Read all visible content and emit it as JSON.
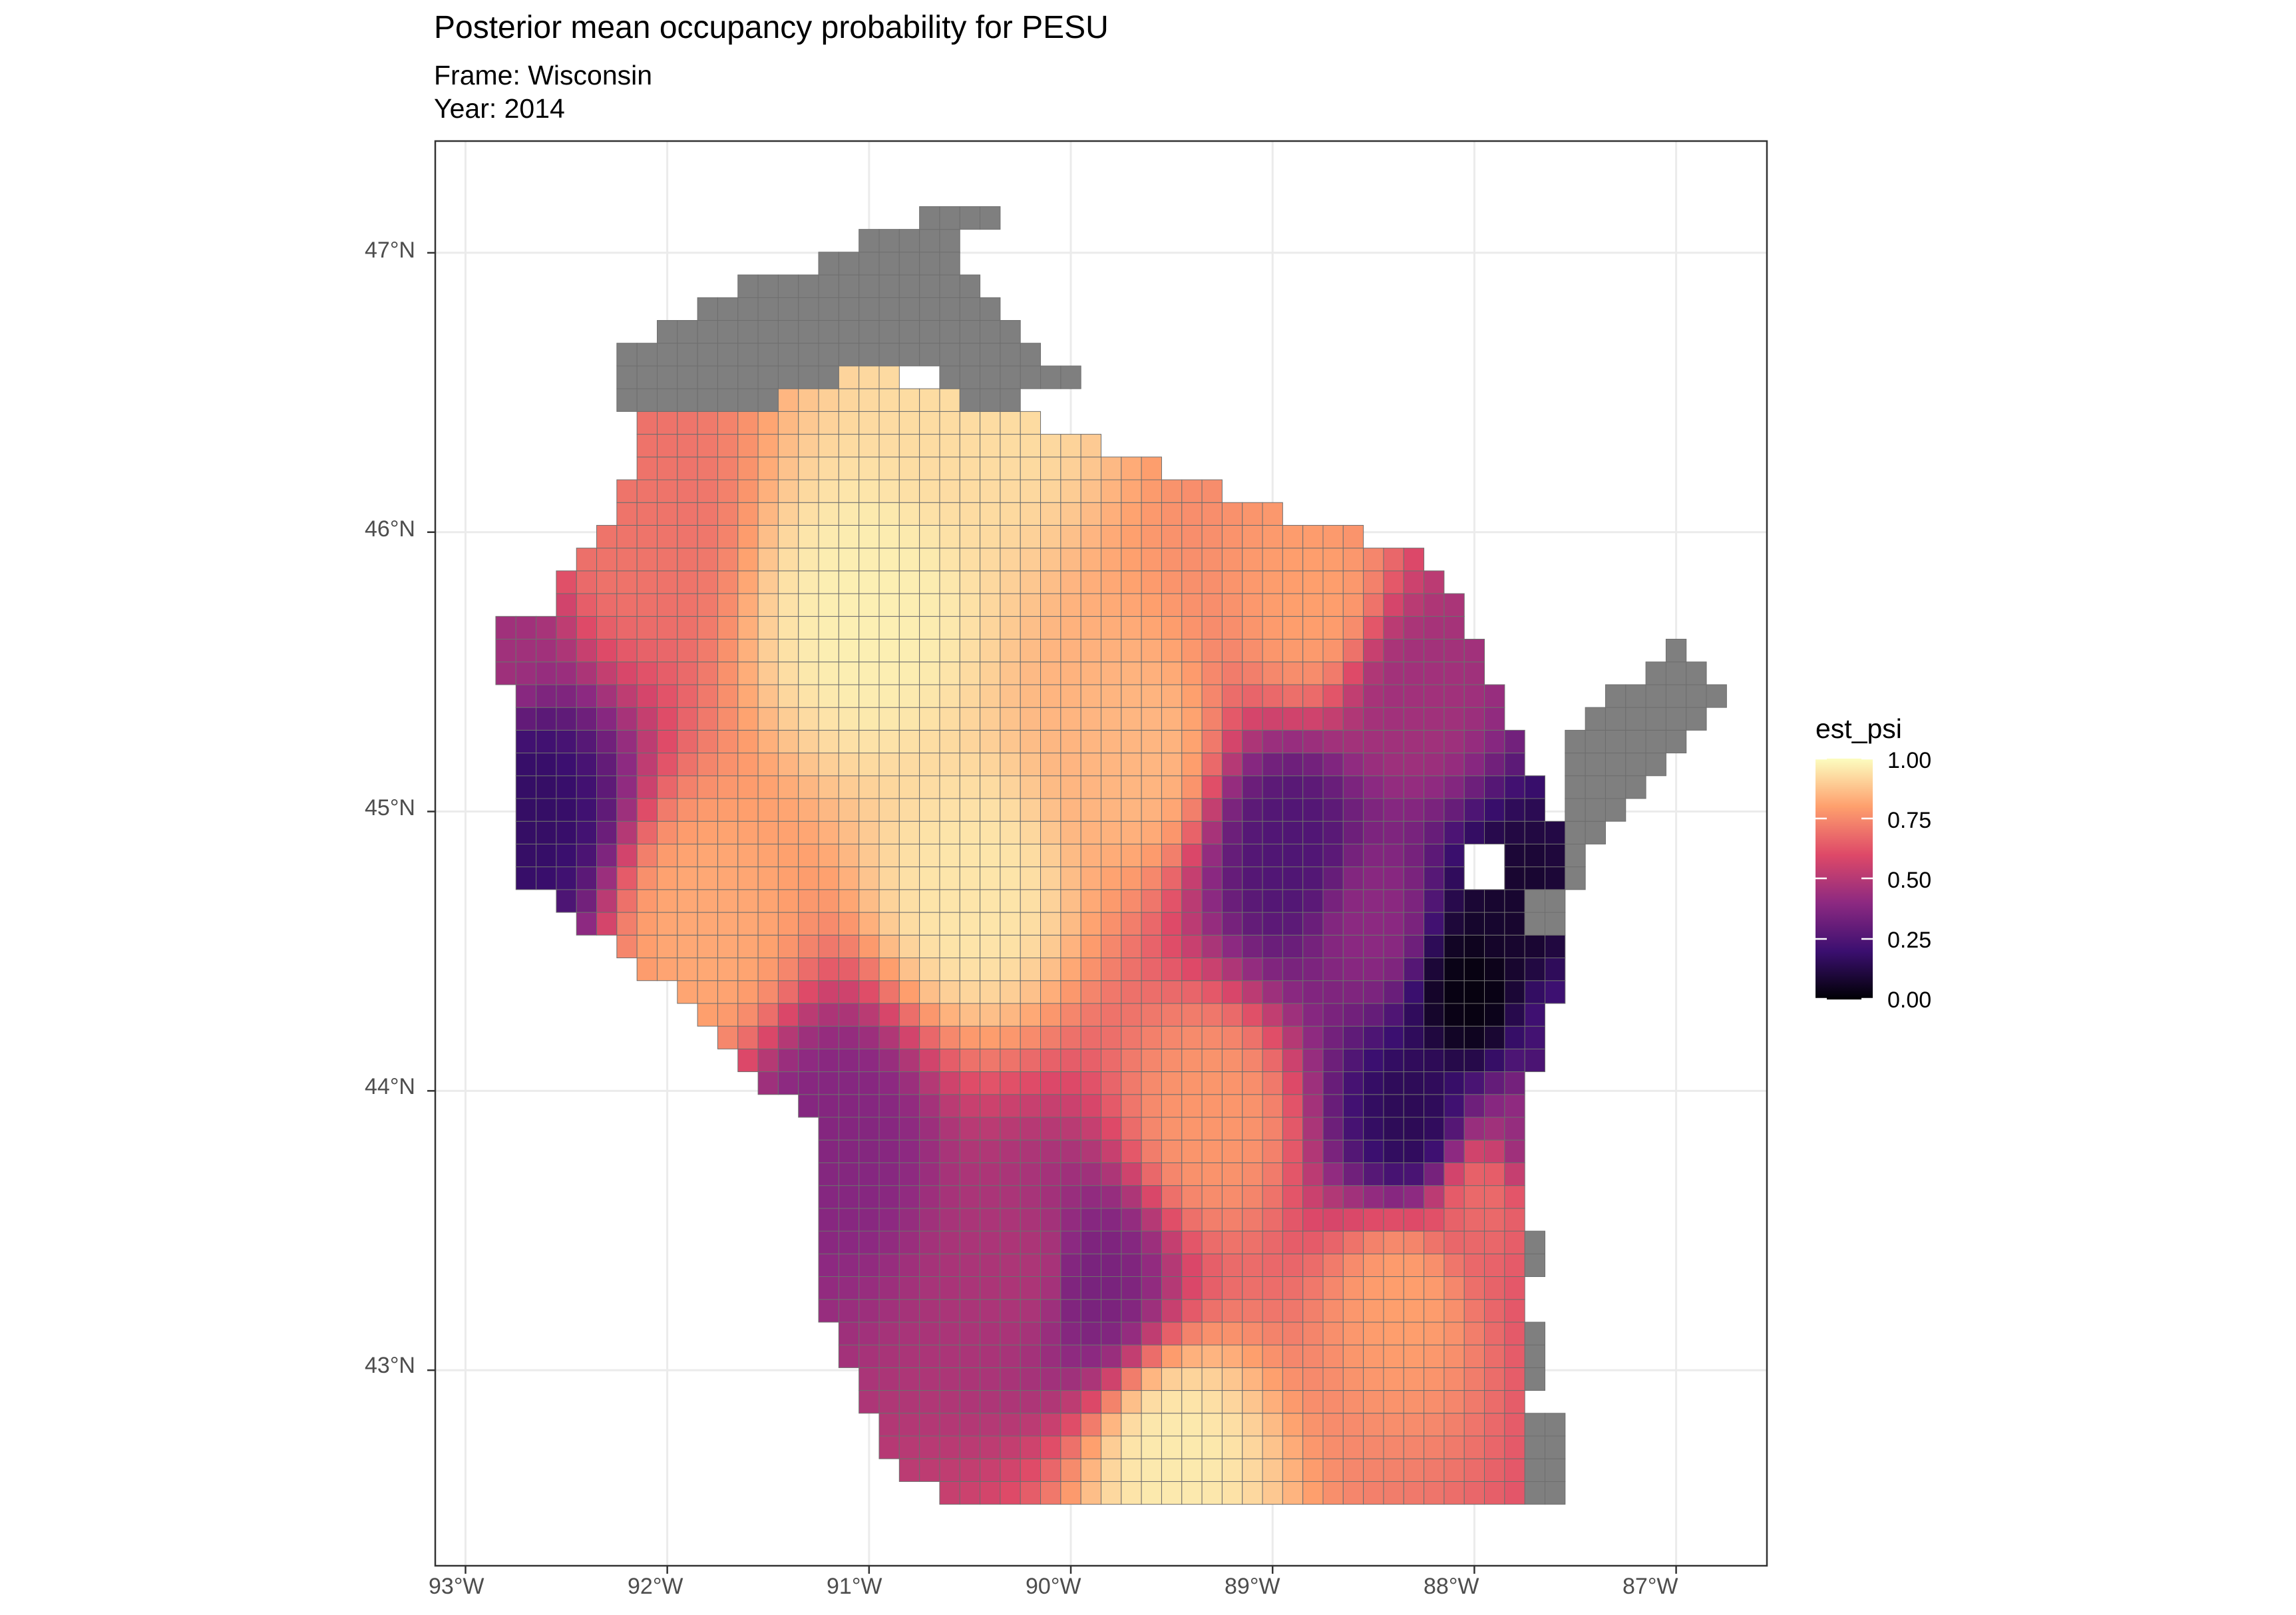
{
  "title": "Posterior mean occupancy probability for PESU",
  "subtitle_frame": "Frame: Wisconsin",
  "subtitle_year": "Year: 2014",
  "x_ticks": [
    "93°W",
    "92°W",
    "91°W",
    "90°W",
    "89°W",
    "88°W",
    "87°W"
  ],
  "y_ticks": [
    "47°N",
    "46°N",
    "45°N",
    "44°N",
    "43°N"
  ],
  "legend": {
    "title": "est_psi",
    "labels": [
      "1.00",
      "0.75",
      "0.50",
      "0.25",
      "0.00"
    ],
    "colormap": [
      "#000004",
      "#3b0f70",
      "#8c2981",
      "#de4968",
      "#fe9f6d",
      "#fcfdbf"
    ]
  },
  "colors": {
    "missing": "#7f7f7f",
    "grid": "#ebebeb",
    "panel_border": "#333333",
    "cell_border": "#6e6e6e"
  },
  "chart_data": {
    "type": "choropleth-grid",
    "variable": "est_psi",
    "value_range": [
      0,
      1
    ],
    "lon_range": [
      -93.15,
      -86.55
    ],
    "lat_range": [
      42.3,
      47.4
    ],
    "notes": "Cells with null value are shown in grey (no estimate).",
    "regions": [
      {
        "lon": -88.0,
        "lat": 44.35,
        "value": 0.02
      },
      {
        "lon": -87.8,
        "lat": 44.6,
        "value": 0.08
      },
      {
        "lon": -88.3,
        "lat": 43.9,
        "value": 0.15
      },
      {
        "lon": -87.6,
        "lat": 44.2,
        "value": 0.22
      },
      {
        "lon": -88.9,
        "lat": 44.85,
        "value": 0.25
      },
      {
        "lon": -92.7,
        "lat": 45.0,
        "value": 0.18
      },
      {
        "lon": -89.9,
        "lat": 43.3,
        "value": 0.35
      },
      {
        "lon": -91.15,
        "lat": 43.85,
        "value": 0.38
      },
      {
        "lon": -88.3,
        "lat": 45.4,
        "value": 0.45
      },
      {
        "lon": -92.9,
        "lat": 45.65,
        "value": 0.45
      },
      {
        "lon": -88.5,
        "lat": 44.6,
        "value": 0.4
      },
      {
        "lon": -87.7,
        "lat": 43.85,
        "value": 0.42
      },
      {
        "lon": -90.2,
        "lat": 43.35,
        "value": 0.48
      },
      {
        "lon": -91.0,
        "lat": 45.7,
        "value": 0.97
      },
      {
        "lon": -90.5,
        "lat": 44.7,
        "value": 0.95
      },
      {
        "lon": -89.5,
        "lat": 42.7,
        "value": 0.96
      },
      {
        "lon": -90.5,
        "lat": 46.45,
        "value": 0.93
      },
      {
        "lon": -89.7,
        "lat": 45.2,
        "value": 0.85
      },
      {
        "lon": -89.3,
        "lat": 43.9,
        "value": 0.78
      },
      {
        "lon": -91.8,
        "lat": 44.6,
        "value": 0.82
      },
      {
        "lon": -88.8,
        "lat": 45.75,
        "value": 0.8
      },
      {
        "lon": -88.35,
        "lat": 43.25,
        "value": 0.8
      },
      {
        "lon": -87.95,
        "lat": 43.6,
        "value": 0.68
      },
      {
        "lon": -92.2,
        "lat": 46.0,
        "value": 0.7
      }
    ]
  }
}
